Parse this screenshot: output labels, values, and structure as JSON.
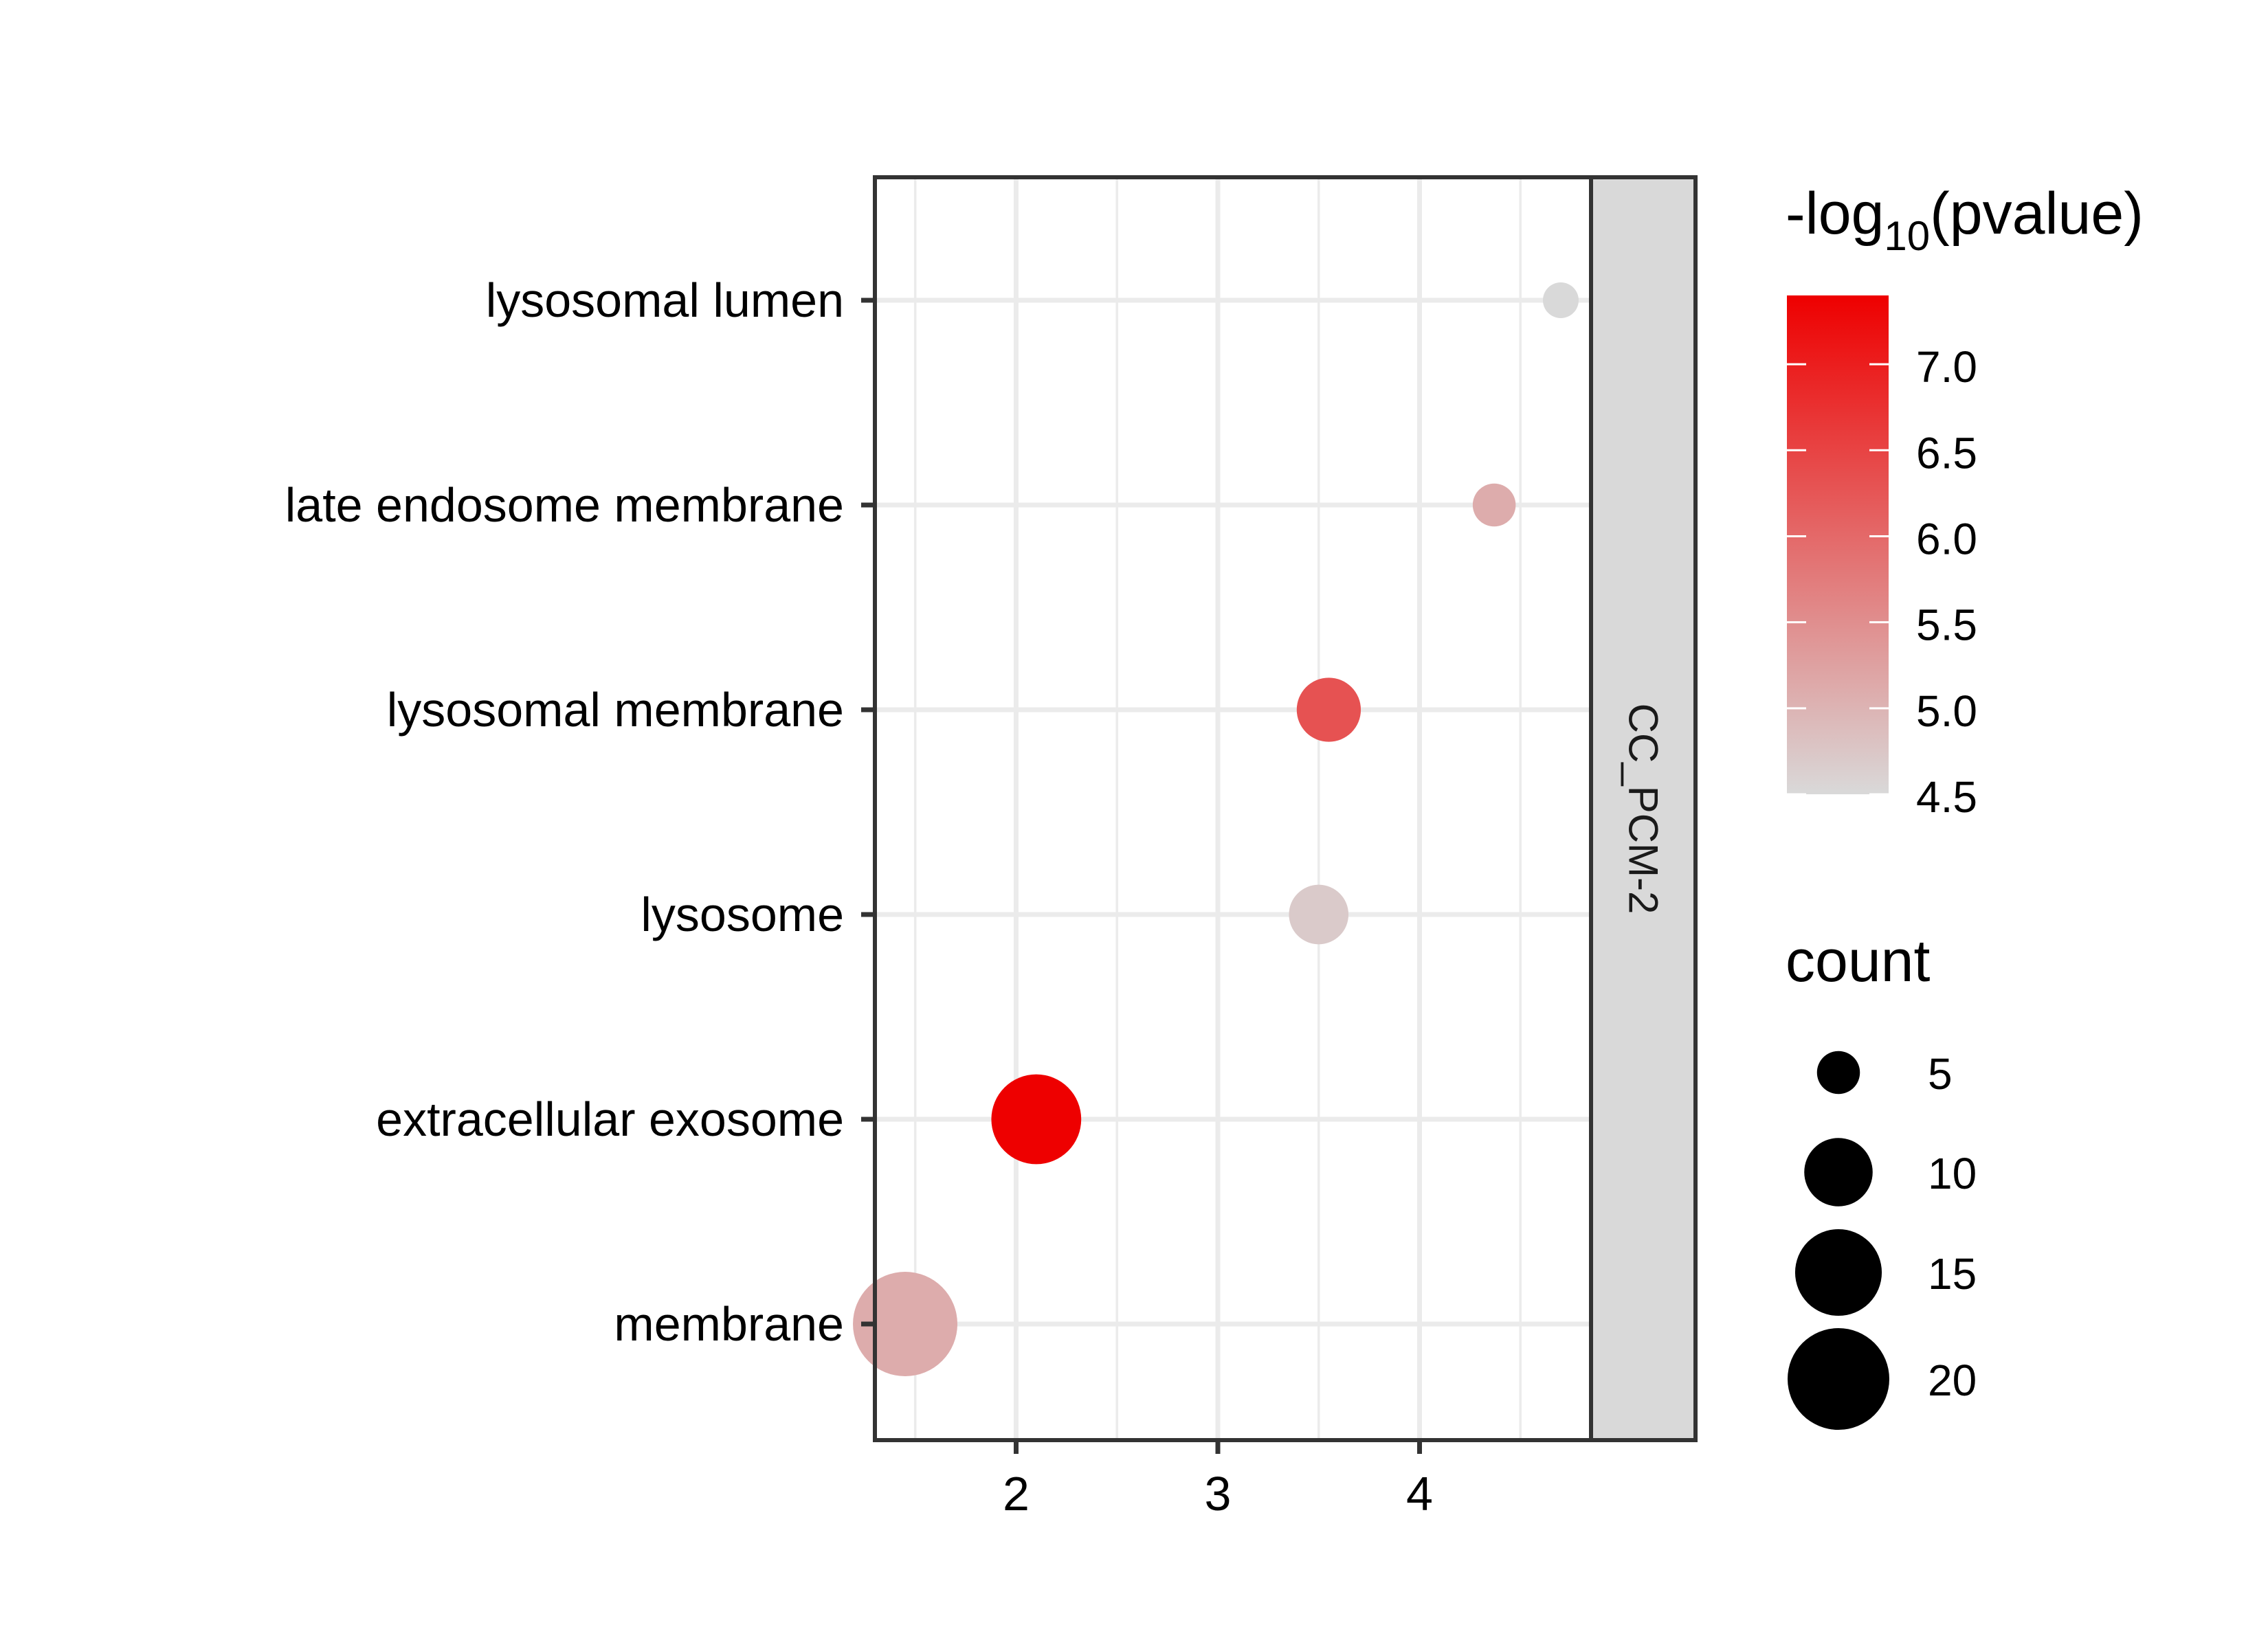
{
  "chart_data": {
    "type": "scatter",
    "facet_label": "CC_PCM-2",
    "xlim": [
      1.3,
      4.85
    ],
    "x_ticks": [
      2,
      3,
      4
    ],
    "categories": [
      "lysosomal lumen",
      "late endosome membrane",
      "lysosomal membrane",
      "lysosome",
      "extracellular exosome",
      "membrane"
    ],
    "points": [
      {
        "term": "lysosomal lumen",
        "x": 4.7,
        "count": 4,
        "neg_log10_pvalue": 4.5
      },
      {
        "term": "late endosome membrane",
        "x": 4.37,
        "count": 5,
        "neg_log10_pvalue": 5.1
      },
      {
        "term": "lysosomal membrane",
        "x": 3.55,
        "count": 9,
        "neg_log10_pvalue": 6.3
      },
      {
        "term": "lysosome",
        "x": 3.5,
        "count": 8,
        "neg_log10_pvalue": 4.7
      },
      {
        "term": "extracellular exosome",
        "x": 2.1,
        "count": 16,
        "neg_log10_pvalue": 7.4
      },
      {
        "term": "membrane",
        "x": 1.45,
        "count": 21,
        "neg_log10_pvalue": 5.1
      }
    ],
    "color_legend": {
      "title_prefix": "-log",
      "title_subscript": "10",
      "title_suffix": "(pvalue)",
      "range": [
        4.5,
        7.4
      ],
      "low_color": "#d9d9d9",
      "high_color": "#ee0000",
      "ticks": [
        {
          "value": 7.0,
          "label": "7.0"
        },
        {
          "value": 6.5,
          "label": "6.5"
        },
        {
          "value": 6.0,
          "label": "6.0"
        },
        {
          "value": 5.5,
          "label": "5.5"
        },
        {
          "value": 5.0,
          "label": "5.0"
        },
        {
          "value": 4.5,
          "label": "4.5"
        }
      ]
    },
    "size_legend": {
      "title": "count",
      "range": [
        4,
        21
      ],
      "entries": [
        {
          "value": 5,
          "label": "5"
        },
        {
          "value": 10,
          "label": "10"
        },
        {
          "value": 15,
          "label": "15"
        },
        {
          "value": 20,
          "label": "20"
        }
      ]
    }
  }
}
